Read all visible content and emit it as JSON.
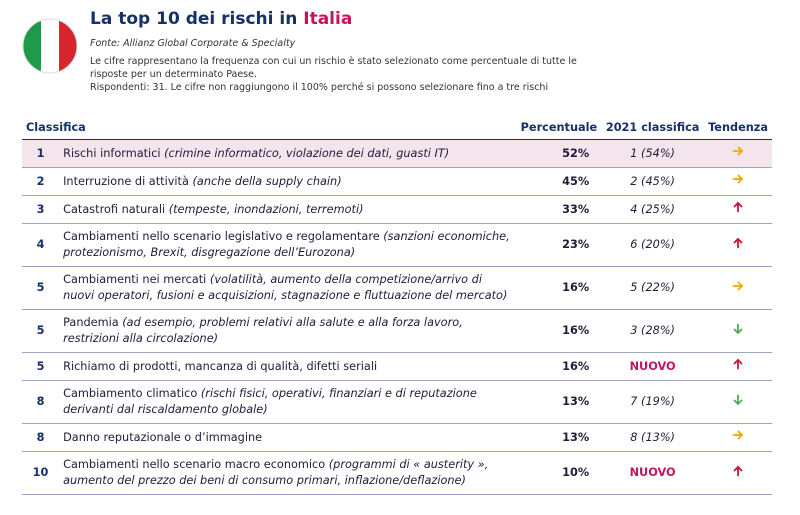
{
  "header": {
    "title": "La top 10 dei rischi in ",
    "title_highlight": "Italia",
    "source": "Fonte: Allianz Global Corporate & Specialty",
    "description": "Le cifre rappresentano la frequenza con cui un rischio è stato selezionato come percentuale di tutte le risposte per un determinato Paese.",
    "respondents": "Rispondenti: 31. Le cifre non raggiungono il 100% perché si possono selezionare fino a tre rischi"
  },
  "table": {
    "columns": [
      "Classifica",
      "Percentuale",
      "2021 classifica",
      "Tendenza"
    ],
    "rows": [
      {
        "rank": "1",
        "risk": "Rischi informatici",
        "detail": "(crimine informatico, violazione dei dati, guasti IT)",
        "percent": "52%",
        "prev": "1 (54%)"
      },
      {
        "rank": "2",
        "risk": "Interruzione di attività",
        "detail": "(anche della supply chain)",
        "percent": "45%",
        "prev": "2 (45%)"
      },
      {
        "rank": "3",
        "risk": "Catastrofi naturali",
        "detail": "(tempeste, inondazioni, terremoti)",
        "percent": "33%",
        "prev": "4 (25%)"
      },
      {
        "rank": "4",
        "risk": "Cambiamenti nello scenario legislativo e regolamentare",
        "detail": "(sanzioni economiche, protezionismo, Brexit, disgregazione dell’Eurozona)",
        "percent": "23%",
        "prev": "6 (20%)"
      },
      {
        "rank": "5",
        "risk": "Cambiamenti nei mercati",
        "detail": "(volatilità, aumento della competizione/arrivo di nuovi operatori, fusioni e acquisizioni, stagnazione e fluttuazione del mercato)",
        "percent": "16%",
        "prev": "5 (22%)"
      },
      {
        "rank": "5",
        "risk": "Pandemia",
        "detail": "(ad esempio, problemi relativi alla salute e alla forza lavoro, restrizioni alla circolazione)",
        "percent": "16%",
        "prev": "3 (28%)"
      },
      {
        "rank": "5",
        "risk": "Richiamo di prodotti, mancanza di qualità, difetti seriali",
        "percent": "16%",
        "prev": "NUOVO"
      },
      {
        "rank": "8",
        "risk": "Cambiamento climatico",
        "detail": "(rischi fisici, operativi, finanziari e di reputazione derivanti dal riscaldamento globale)",
        "percent": "13%",
        "prev": "7 (19%)"
      },
      {
        "rank": "8",
        "risk": "Danno reputazionale o d’immagine",
        "percent": "13%",
        "prev": "8 (13%)"
      },
      {
        "rank": "10",
        "risk": "Cambiamenti nello scenario macro economico",
        "detail": "(programmi di « austerity », aumento del prezzo dei beni di consumo primari, inflazione/deflazione)",
        "percent": "10%",
        "prev": "NUOVO"
      }
    ]
  }
}
